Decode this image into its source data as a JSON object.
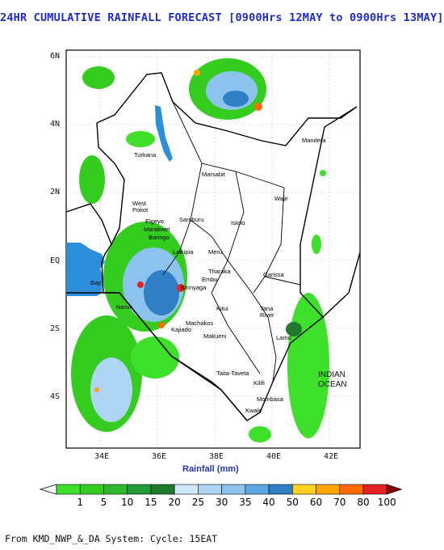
{
  "title": "24HR CUMULATIVE RAINFALL FORECAST [0900Hrs 12MAY to 0900Hrs 13MAY]",
  "axes": {
    "y_ticks": [
      "6N",
      "4N",
      "2N",
      "EQ",
      "2S",
      "4S"
    ],
    "x_ticks": [
      "34E",
      "36E",
      "38E",
      "40E",
      "42E"
    ],
    "x_title": "Rainfall (mm)"
  },
  "colorbar": {
    "labels": [
      "1",
      "5",
      "10",
      "15",
      "20",
      "25",
      "30",
      "35",
      "40",
      "50",
      "60",
      "70",
      "80",
      "100"
    ],
    "colors": [
      "#3fe02a",
      "#33cc1f",
      "#2eb82e",
      "#239a3a",
      "#1f7a2e",
      "#cfe6fb",
      "#aed6f4",
      "#8cc3ee",
      "#5aa7e3",
      "#2f7fc5",
      "#ffd21f",
      "#ffa500",
      "#ff6a00",
      "#e62020",
      "#8b0000"
    ]
  },
  "map": {
    "ocean_label_line1": "INDIAN",
    "ocean_label_line2": "OCEAN",
    "places": {
      "turkana": "Turkana",
      "mandera": "Mandera",
      "marsabit": "Marsabit",
      "wajir": "Wajir",
      "west_pokot": "West",
      "west_pokot2": "Pokot",
      "samburu": "Samburu",
      "isiolo": "Isiolo",
      "elgeyo": "Elgeyo",
      "marakwet": "Marakwet",
      "baringo": "Baringo",
      "laikipia": "Laikipia",
      "meru": "Meru",
      "tharaka": "Tharaka",
      "embu": "Embu",
      "kirinyaga": "Kirinyaga",
      "garissa": "Garissa",
      "kitui": "Kitui",
      "tana_river": "Tana",
      "tana_river2": "River",
      "machakos": "Machakos",
      "kajiado": "Kajiado",
      "makueni": "Makueni",
      "lamu": "Lamu",
      "taita_taveta": "Taita-Taveta",
      "kilifi": "Kilifi",
      "mombasa": "Mombasa",
      "kwale": "Kwale",
      "narok": "Narok",
      "bay": "Bay"
    }
  },
  "footer": "From KMD_NWP_&_DA System: Cycle: 15EAT"
}
